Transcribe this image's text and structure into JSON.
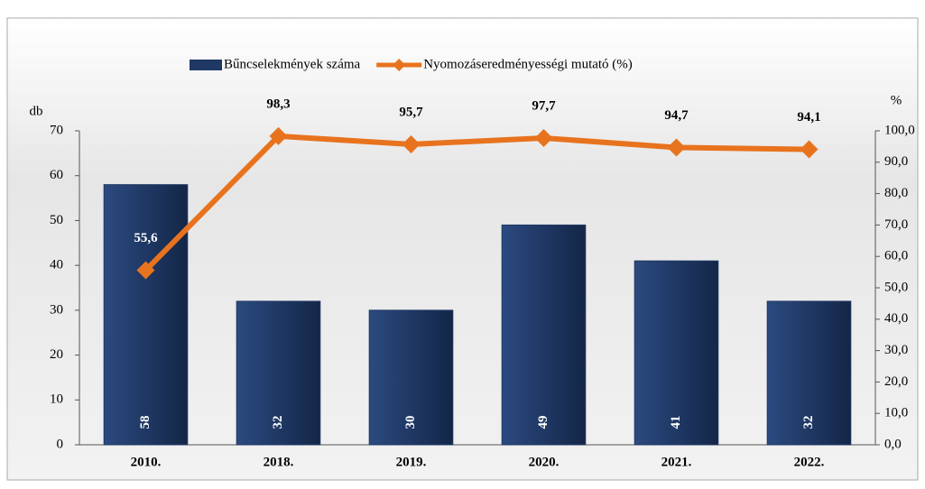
{
  "chart_data": {
    "type": "bar",
    "categories": [
      "2010.",
      "2018.",
      "2019.",
      "2020.",
      "2021.",
      "2022."
    ],
    "series": [
      {
        "name": "Bűncselekmények száma",
        "type": "bar",
        "color": "#1f3864",
        "axis": "y",
        "values": [
          58,
          32,
          30,
          49,
          41,
          32
        ]
      },
      {
        "name": "Nyomozáseredményességi mutató (%)",
        "type": "line",
        "color": "#e8731e",
        "axis": "y2",
        "values": [
          55.6,
          98.3,
          95.7,
          97.7,
          94.7,
          94.1
        ],
        "value_labels": [
          "55,6",
          "98,3",
          "95,7",
          "97,7",
          "94,7",
          "94,1"
        ]
      }
    ],
    "ylabel": "db",
    "y2label": "%",
    "ylim": [
      0,
      70
    ],
    "yticks": [
      0,
      10,
      20,
      30,
      40,
      50,
      60,
      70
    ],
    "y2lim": [
      0,
      100
    ],
    "y2ticks": [
      {
        "value": 0,
        "label": "0,0"
      },
      {
        "value": 10,
        "label": "10,0"
      },
      {
        "value": 20,
        "label": "20,0"
      },
      {
        "value": 30,
        "label": "30,0"
      },
      {
        "value": 40,
        "label": "40,0"
      },
      {
        "value": 50,
        "label": "50,0"
      },
      {
        "value": 60,
        "label": "60,0"
      },
      {
        "value": 70,
        "label": "70,0"
      },
      {
        "value": 80,
        "label": "80,0"
      },
      {
        "value": 90,
        "label": "90,0"
      },
      {
        "value": 100,
        "label": "100,0"
      }
    ],
    "legend": "top"
  }
}
